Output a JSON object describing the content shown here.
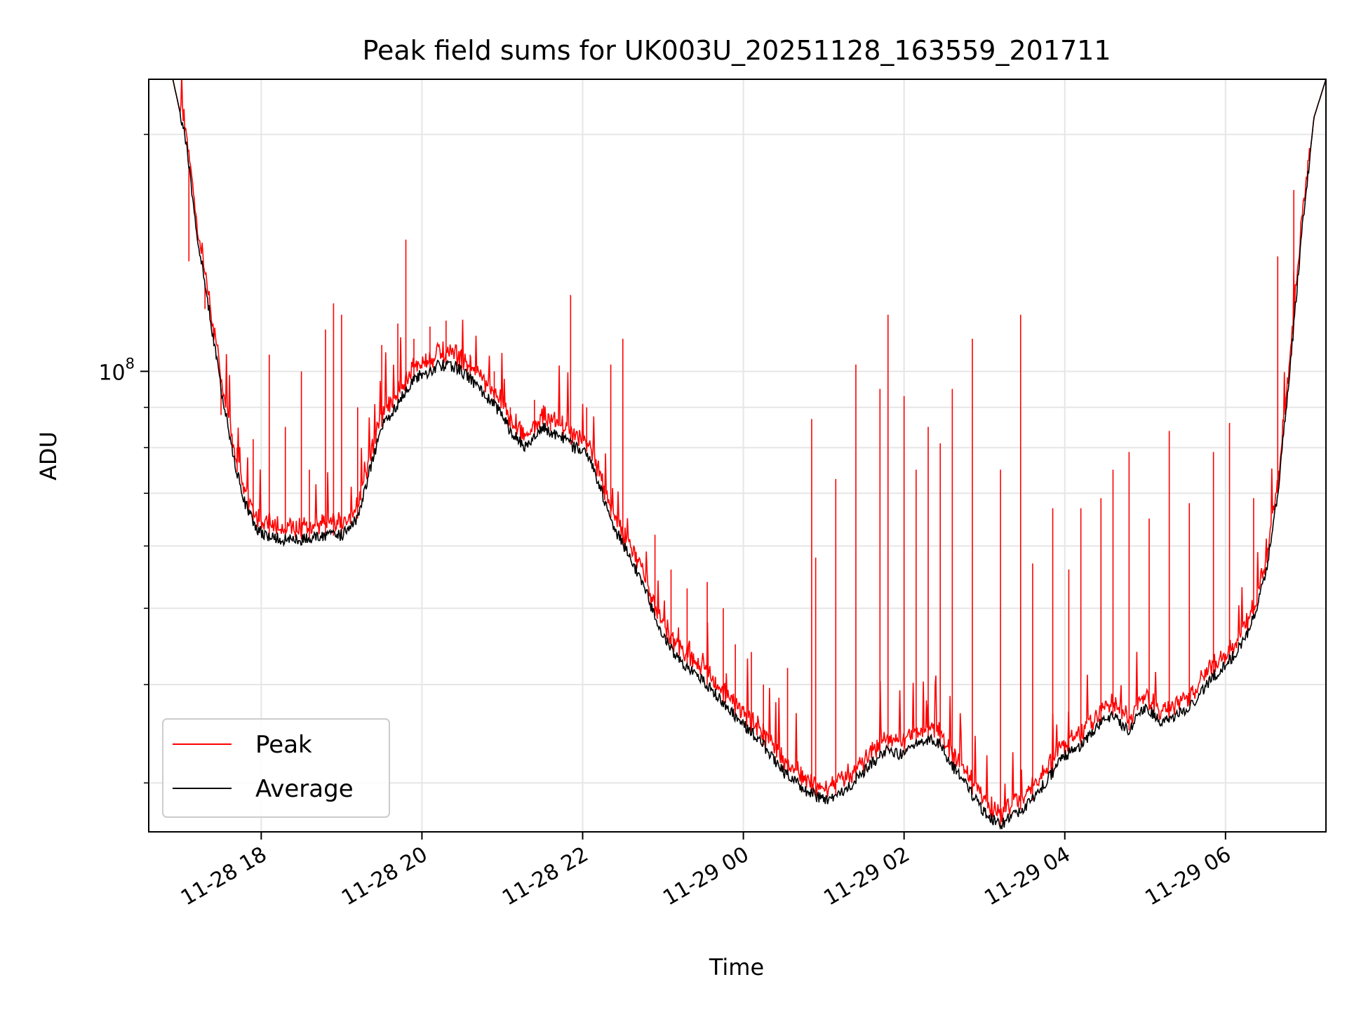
{
  "chart_data": {
    "type": "line",
    "title": "Peak field sums for UK003U_20251128_163559_201711",
    "xlabel": "Time",
    "ylabel": "ADU",
    "yscale": "log",
    "ylim": [
      26000000.0,
      235000000.0
    ],
    "xlim_hours": [
      16.6,
      31.25
    ],
    "x_unit": "hours since 2025-11-28 00:00",
    "grid": true,
    "legend_position": "lower-left",
    "x_ticks": [
      {
        "value": 18,
        "label": "11-28 18"
      },
      {
        "value": 20,
        "label": "11-28 20"
      },
      {
        "value": 22,
        "label": "11-28 22"
      },
      {
        "value": 24,
        "label": "11-29 00"
      },
      {
        "value": 26,
        "label": "11-29 02"
      },
      {
        "value": 28,
        "label": "11-29 04"
      },
      {
        "value": 30,
        "label": "11-29 06"
      }
    ],
    "y_major_ticks": [
      {
        "value": 100000000,
        "base": "10",
        "exp": "8"
      }
    ],
    "y_minor_ticks": [
      30000000.0,
      40000000.0,
      50000000.0,
      60000000.0,
      70000000.0,
      80000000.0,
      90000000.0,
      200000000.0
    ],
    "series": [
      {
        "name": "Peak",
        "color": "#ff0000",
        "spikes": [
          [
            17.1,
            138000000.0
          ],
          [
            17.3,
            120000000.0
          ],
          [
            17.5,
            88000000.0
          ],
          [
            17.7,
            80000000.0
          ],
          [
            17.9,
            82000000.0
          ],
          [
            18.1,
            105000000.0
          ],
          [
            18.3,
            85000000.0
          ],
          [
            18.5,
            100000000.0
          ],
          [
            18.6,
            75000000.0
          ],
          [
            18.8,
            113000000.0
          ],
          [
            18.9,
            122000000.0
          ],
          [
            19.0,
            118000000.0
          ],
          [
            19.2,
            90000000.0
          ],
          [
            19.5,
            108000000.0
          ],
          [
            19.7,
            115000000.0
          ],
          [
            19.8,
            147000000.0
          ],
          [
            19.9,
            110000000.0
          ],
          [
            20.1,
            114000000.0
          ],
          [
            20.3,
            116000000.0
          ],
          [
            20.6,
            105000000.0
          ],
          [
            20.9,
            100000000.0
          ],
          [
            21.1,
            90000000.0
          ],
          [
            21.4,
            92000000.0
          ],
          [
            21.6,
            86000000.0
          ],
          [
            21.85,
            125000000.0
          ],
          [
            22.05,
            90000000.0
          ],
          [
            22.35,
            102000000.0
          ],
          [
            22.5,
            110000000.0
          ],
          [
            22.9,
            62000000.0
          ],
          [
            23.1,
            56000000.0
          ],
          [
            23.3,
            53000000.0
          ],
          [
            23.55,
            54000000.0
          ],
          [
            23.75,
            50000000.0
          ],
          [
            23.9,
            45000000.0
          ],
          [
            24.1,
            44000000.0
          ],
          [
            24.25,
            40000000.0
          ],
          [
            24.55,
            42000000.0
          ],
          [
            24.85,
            87000000.0
          ],
          [
            24.9,
            58000000.0
          ],
          [
            25.15,
            73000000.0
          ],
          [
            25.4,
            102000000.0
          ],
          [
            25.7,
            95000000.0
          ],
          [
            25.8,
            118000000.0
          ],
          [
            26.0,
            93000000.0
          ],
          [
            26.15,
            75000000.0
          ],
          [
            26.3,
            85000000.0
          ],
          [
            26.45,
            81000000.0
          ],
          [
            26.6,
            95000000.0
          ],
          [
            26.85,
            110000000.0
          ],
          [
            27.2,
            75000000.0
          ],
          [
            27.45,
            118000000.0
          ],
          [
            27.6,
            57000000.0
          ],
          [
            27.85,
            67000000.0
          ],
          [
            28.05,
            56000000.0
          ],
          [
            28.2,
            67000000.0
          ],
          [
            28.45,
            69000000.0
          ],
          [
            28.6,
            75000000.0
          ],
          [
            28.8,
            79000000.0
          ],
          [
            29.05,
            65000000.0
          ],
          [
            29.3,
            84000000.0
          ],
          [
            29.55,
            68000000.0
          ],
          [
            29.85,
            79000000.0
          ],
          [
            30.05,
            86000000.0
          ],
          [
            30.35,
            69000000.0
          ],
          [
            30.65,
            140000000.0
          ],
          [
            30.85,
            170000000.0
          ]
        ]
      },
      {
        "name": "Average",
        "color": "#000000",
        "points": [
          [
            16.6,
            235000000.0
          ],
          [
            16.9,
            235000000.0
          ],
          [
            17.05,
            200000000.0
          ],
          [
            17.2,
            150000000.0
          ],
          [
            17.35,
            120000000.0
          ],
          [
            17.5,
            95000000.0
          ],
          [
            17.65,
            78000000.0
          ],
          [
            17.8,
            68000000.0
          ],
          [
            17.95,
            63000000.0
          ],
          [
            18.1,
            61500000.0
          ],
          [
            18.4,
            61000000.0
          ],
          [
            18.7,
            61500000.0
          ],
          [
            19.0,
            62000000.0
          ],
          [
            19.2,
            65000000.0
          ],
          [
            19.35,
            75000000.0
          ],
          [
            19.5,
            85000000.0
          ],
          [
            19.7,
            91000000.0
          ],
          [
            19.9,
            98000000.0
          ],
          [
            20.1,
            100000000.0
          ],
          [
            20.2,
            102000000.0
          ],
          [
            20.45,
            101000000.0
          ],
          [
            20.6,
            98000000.0
          ],
          [
            20.8,
            93000000.0
          ],
          [
            21.0,
            88000000.0
          ],
          [
            21.1,
            84000000.0
          ],
          [
            21.3,
            80000000.0
          ],
          [
            21.5,
            85000000.0
          ],
          [
            21.7,
            83000000.0
          ],
          [
            21.9,
            80000000.0
          ],
          [
            22.05,
            79000000.0
          ],
          [
            22.2,
            72000000.0
          ],
          [
            22.4,
            63000000.0
          ],
          [
            22.6,
            58000000.0
          ],
          [
            22.8,
            52000000.0
          ],
          [
            23.0,
            46000000.0
          ],
          [
            23.2,
            43000000.0
          ],
          [
            23.5,
            40500000.0
          ],
          [
            23.75,
            38000000.0
          ],
          [
            23.95,
            36000000.0
          ],
          [
            24.2,
            34000000.0
          ],
          [
            24.5,
            31000000.0
          ],
          [
            24.75,
            29500000.0
          ],
          [
            25.0,
            28500000.0
          ],
          [
            25.3,
            29500000.0
          ],
          [
            25.55,
            31500000.0
          ],
          [
            25.8,
            33000000.0
          ],
          [
            26.0,
            32500000.0
          ],
          [
            26.2,
            34000000.0
          ],
          [
            26.4,
            34000000.0
          ],
          [
            26.6,
            31500000.0
          ],
          [
            26.8,
            29500000.0
          ],
          [
            27.0,
            27500000.0
          ],
          [
            27.2,
            26500000.0
          ],
          [
            27.4,
            27500000.0
          ],
          [
            27.6,
            28500000.0
          ],
          [
            27.8,
            30500000.0
          ],
          [
            28.0,
            32500000.0
          ],
          [
            28.2,
            33500000.0
          ],
          [
            28.4,
            35500000.0
          ],
          [
            28.6,
            36500000.0
          ],
          [
            28.8,
            35000000.0
          ],
          [
            29.0,
            37500000.0
          ],
          [
            29.2,
            36000000.0
          ],
          [
            29.4,
            36500000.0
          ],
          [
            29.6,
            38000000.0
          ],
          [
            29.8,
            40500000.0
          ],
          [
            30.1,
            43500000.0
          ],
          [
            30.3,
            47000000.0
          ],
          [
            30.5,
            55000000.0
          ],
          [
            30.65,
            70000000.0
          ],
          [
            30.8,
            100000000.0
          ],
          [
            30.95,
            150000000.0
          ],
          [
            31.1,
            210000000.0
          ],
          [
            31.25,
            235000000.0
          ]
        ]
      }
    ]
  }
}
